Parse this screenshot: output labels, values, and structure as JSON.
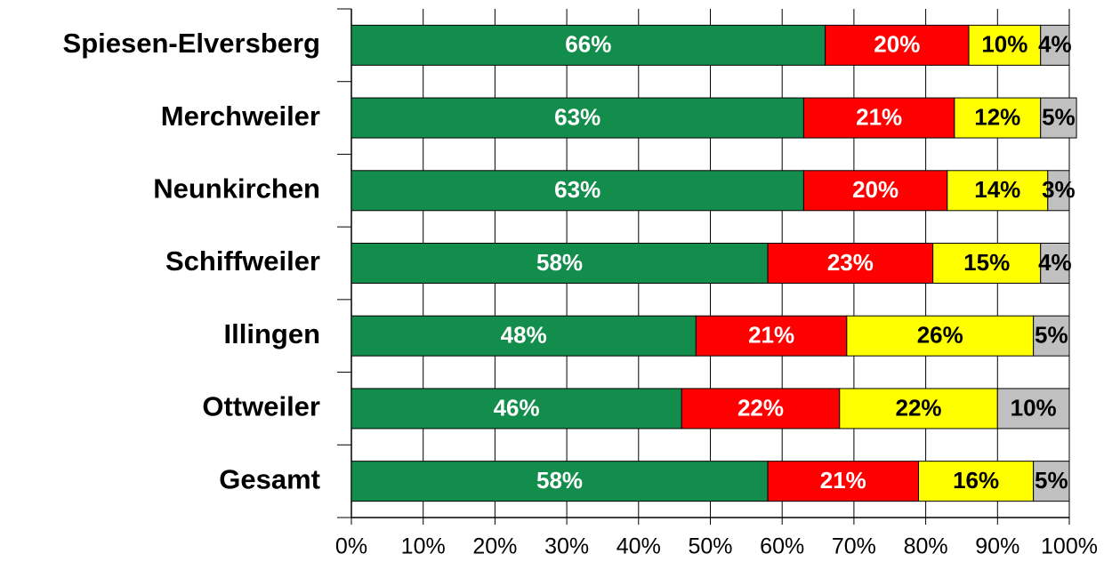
{
  "chart_data": {
    "type": "stacked-barh",
    "categories": [
      "Spiesen-Elversberg",
      "Merchweiler",
      "Neunkirchen",
      "Schiffweiler",
      "Illingen",
      "Ottweiler",
      "Gesamt"
    ],
    "series": [
      {
        "color": "#138d4b",
        "label_color": "#ffffff",
        "values": [
          66,
          63,
          63,
          58,
          48,
          46,
          58
        ],
        "value_labels": [
          "66%",
          "63%",
          "63%",
          "58%",
          "48%",
          "46%",
          "58%"
        ]
      },
      {
        "color": "#ff0000",
        "label_color": "#ffffff",
        "values": [
          20,
          21,
          20,
          23,
          21,
          22,
          21
        ],
        "value_labels": [
          "20%",
          "21%",
          "20%",
          "23%",
          "21%",
          "22%",
          "21%"
        ]
      },
      {
        "color": "#ffff00",
        "label_color": "#000000",
        "values": [
          10,
          12,
          14,
          15,
          26,
          22,
          16
        ],
        "value_labels": [
          "10%",
          "12%",
          "14%",
          "15%",
          "26%",
          "22%",
          "16%"
        ]
      },
      {
        "color": "#c0c0c0",
        "label_color": "#000000",
        "values": [
          4,
          5,
          3,
          4,
          5,
          10,
          5
        ],
        "value_labels": [
          "4%",
          "5%",
          "3%",
          "4%",
          "5%",
          "10%",
          "5%"
        ]
      }
    ],
    "xlim": [
      0,
      100
    ],
    "xticks": [
      {
        "value": 0,
        "label": "0%"
      },
      {
        "value": 10,
        "label": "10%"
      },
      {
        "value": 20,
        "label": "20%"
      },
      {
        "value": 30,
        "label": "30%"
      },
      {
        "value": 40,
        "label": "40%"
      },
      {
        "value": 50,
        "label": "50%"
      },
      {
        "value": 60,
        "label": "60%"
      },
      {
        "value": 70,
        "label": "70%"
      },
      {
        "value": 80,
        "label": "80%"
      },
      {
        "value": 90,
        "label": "90%"
      },
      {
        "value": 100,
        "label": "100%"
      }
    ],
    "grid": true
  }
}
